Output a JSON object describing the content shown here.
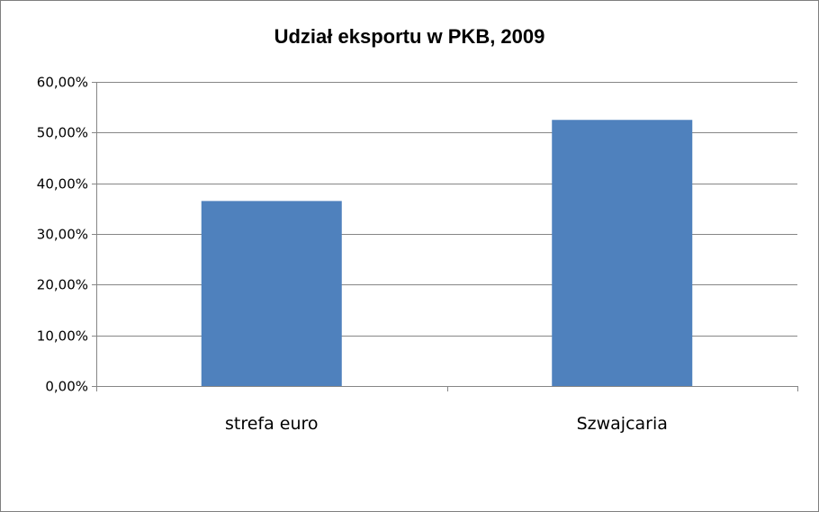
{
  "chart_data": {
    "type": "bar",
    "title": "Udział eksportu w PKB, 2009",
    "xlabel": "",
    "ylabel": "",
    "categories": [
      "strefa euro",
      "Szwajcaria"
    ],
    "values": [
      36.5,
      52.5
    ],
    "ylim": [
      0,
      60
    ],
    "yticks": [
      0,
      10,
      20,
      30,
      40,
      50,
      60
    ],
    "ytick_labels": [
      "0,00%",
      "10,00%",
      "20,00%",
      "30,00%",
      "40,00%",
      "50,00%",
      "60,00%"
    ],
    "grid": true,
    "legend": "none",
    "bar_color": "#4f81bd",
    "grid_color": "#868686"
  }
}
